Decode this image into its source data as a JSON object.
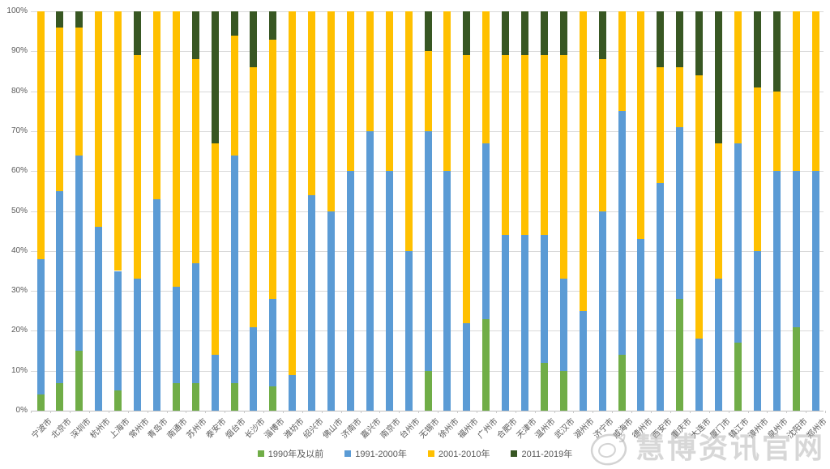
{
  "chart_data": {
    "type": "bar",
    "stacked": true,
    "percent_stacked": true,
    "title": "",
    "xlabel": "",
    "ylabel": "",
    "grid": true,
    "legend_position": "bottom",
    "y_axis": {
      "min": 0,
      "max": 100,
      "ticks": [
        "100%",
        "90%",
        "80%",
        "70%",
        "60%",
        "50%",
        "40%",
        "30%",
        "20%",
        "10%",
        "0%"
      ]
    },
    "categories": [
      "宁波市",
      "北京市",
      "深圳市",
      "杭州市",
      "上海市",
      "常州市",
      "青岛市",
      "南通市",
      "苏州市",
      "泰安市",
      "烟台市",
      "长沙市",
      "淄博市",
      "潍坊市",
      "绍兴市",
      "佛山市",
      "济南市",
      "嘉兴市",
      "南京市",
      "台州市",
      "无锡市",
      "徐州市",
      "福州市",
      "广州市",
      "合肥市",
      "天津市",
      "温州市",
      "武汉市",
      "湖州市",
      "济宁市",
      "威海市",
      "德州市",
      "西安市",
      "重庆市",
      "大连市",
      "厦门市",
      "镇江市",
      "漳州市",
      "泉州市",
      "沈阳市",
      "郑州市"
    ],
    "series": [
      {
        "name": "1990年及以前",
        "color": "#70AD47",
        "values": [
          4,
          7,
          15,
          0,
          5,
          0,
          0,
          7,
          7,
          0,
          7,
          0,
          6,
          0,
          0,
          0,
          0,
          0,
          0,
          0,
          10,
          0,
          0,
          23,
          0,
          0,
          12,
          10,
          0,
          0,
          14,
          0,
          0,
          28,
          0,
          0,
          17,
          0,
          0,
          21,
          0
        ]
      },
      {
        "name": "1991-2000年",
        "color": "#5B9BD5",
        "values": [
          34,
          48,
          49,
          46,
          30,
          33,
          53,
          24,
          30,
          14,
          57,
          21,
          22,
          9,
          54,
          50,
          60,
          70,
          60,
          40,
          60,
          60,
          22,
          44,
          44,
          44,
          32,
          23,
          25,
          50,
          61,
          43,
          57,
          43,
          18,
          33,
          50,
          40,
          60,
          39,
          60
        ]
      },
      {
        "name": "2001-2010年",
        "color": "#FFC000",
        "values": [
          62,
          41,
          32,
          54,
          65,
          56,
          47,
          69,
          51,
          53,
          30,
          65,
          65,
          91,
          46,
          50,
          40,
          30,
          40,
          60,
          20,
          40,
          67,
          33,
          45,
          45,
          45,
          56,
          75,
          38,
          25,
          57,
          29,
          15,
          66,
          34,
          33,
          41,
          20,
          40,
          40
        ]
      },
      {
        "name": "2011-2019年",
        "color": "#385723",
        "values": [
          0,
          4,
          4,
          0,
          0,
          11,
          0,
          0,
          12,
          33,
          6,
          14,
          7,
          0,
          0,
          0,
          0,
          0,
          0,
          0,
          10,
          0,
          11,
          0,
          11,
          11,
          11,
          11,
          0,
          12,
          0,
          0,
          14,
          14,
          16,
          33,
          0,
          19,
          20,
          0,
          0
        ]
      }
    ]
  },
  "colors": {
    "gridline": "#d9d9d9",
    "axis_text": "#595959",
    "background": "#ffffff",
    "watermark": "#afafaf"
  },
  "watermark": {
    "text": "慧博资讯官网",
    "logo": "spiral-circle-icon"
  }
}
